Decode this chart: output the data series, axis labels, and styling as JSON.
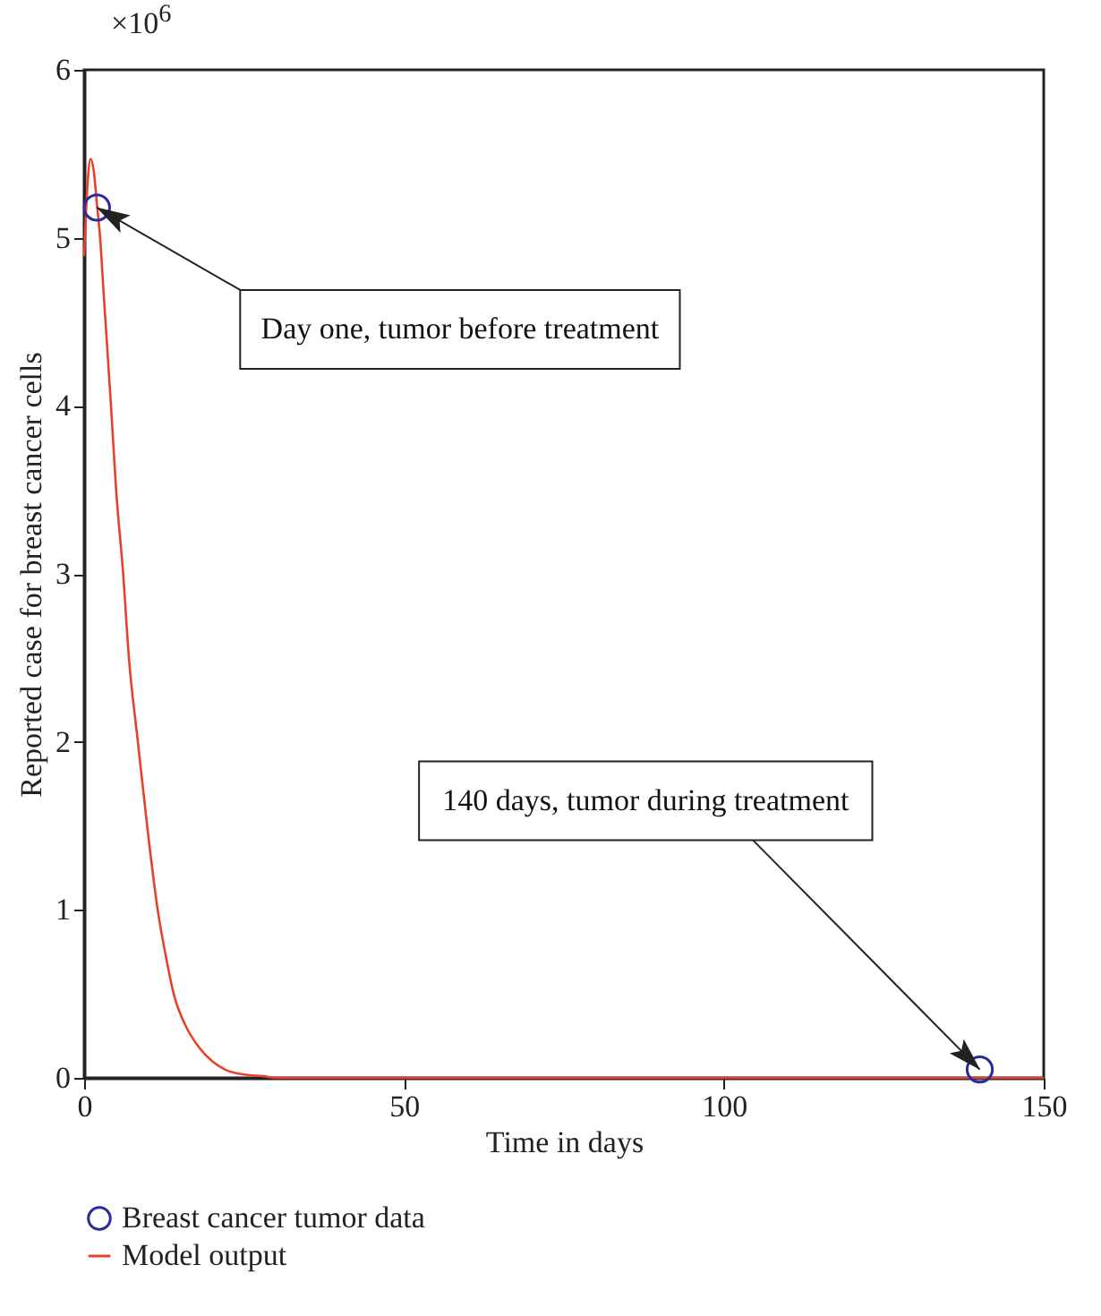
{
  "chart_data": {
    "type": "line",
    "xlabel": "Time in days",
    "ylabel": "Reported case for breast cancer cells",
    "xlim": [
      0,
      150
    ],
    "xticks": [
      0,
      50,
      100,
      150
    ],
    "ylim": [
      0,
      6
    ],
    "yticks": [
      0,
      1,
      2,
      3,
      4,
      5,
      6
    ],
    "grid": false,
    "legend": "bottom left",
    "series": [
      {
        "name": "Breast cancer tumor data",
        "type": "scatter",
        "marker": "circle",
        "color": "#2b2b9e",
        "x": [
          2,
          140
        ],
        "values": [
          5.18,
          0.05
        ]
      },
      {
        "name": "Model output",
        "marker": "none",
        "color": "#e8402a",
        "x": [
          0,
          0.5,
          1,
          1.5,
          2,
          2.5,
          3,
          4.2,
          5,
          6.1,
          7,
          8.4,
          10,
          11.5,
          13,
          14,
          16,
          18,
          20,
          22,
          25,
          28,
          30,
          40,
          60,
          80,
          100,
          120,
          150
        ],
        "values": [
          4.89,
          5.3,
          5.47,
          5.4,
          5.2,
          5.0,
          4.7,
          4.0,
          3.5,
          3.0,
          2.5,
          2.0,
          1.45,
          1.0,
          0.68,
          0.5,
          0.3,
          0.18,
          0.1,
          0.05,
          0.02,
          0.01,
          0,
          0,
          0,
          0,
          0,
          0,
          0
        ]
      }
    ],
    "annotations": [
      "×10$^{6}$",
      {
        "text": "Day one, tumor before treatment",
        "x": 2,
        "y": 5.18
      },
      {
        "text": "140 days, tumor during treatment",
        "x": 140,
        "y": 0.05
      }
    ]
  }
}
